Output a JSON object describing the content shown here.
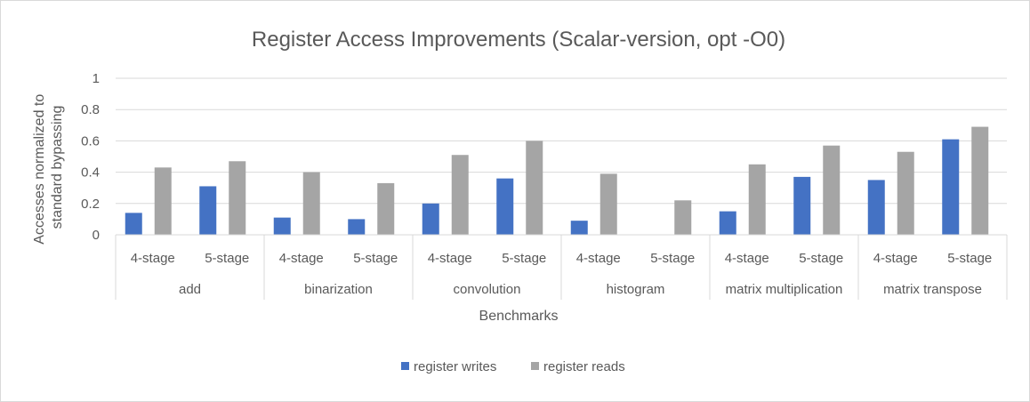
{
  "chart_data": {
    "type": "bar",
    "title": "Register Access Improvements (Scalar-version, opt -O0)",
    "xlabel": "Benchmarks",
    "ylabel_lines": [
      "Accesses normalized to",
      "standard bypassing"
    ],
    "ylim": [
      0,
      1
    ],
    "yticks": [
      "0",
      "0.2",
      "0.4",
      "0.6",
      "0.8",
      "1"
    ],
    "grid": true,
    "legend_position": "bottom",
    "groups": [
      {
        "name": "add",
        "categories": [
          "4-stage",
          "5-stage"
        ]
      },
      {
        "name": "binarization",
        "categories": [
          "4-stage",
          "5-stage"
        ]
      },
      {
        "name": "convolution",
        "categories": [
          "4-stage",
          "5-stage"
        ]
      },
      {
        "name": "histogram",
        "categories": [
          "4-stage",
          "5-stage"
        ]
      },
      {
        "name": "matrix multiplication",
        "categories": [
          "4-stage",
          "5-stage"
        ]
      },
      {
        "name": "matrix transpose",
        "categories": [
          "4-stage",
          "5-stage"
        ]
      }
    ],
    "series": [
      {
        "name": "register writes",
        "color": "#4472c4",
        "values": [
          0.14,
          0.31,
          0.11,
          0.1,
          0.2,
          0.36,
          0.09,
          0.0,
          0.15,
          0.37,
          0.35,
          0.61
        ]
      },
      {
        "name": "register reads",
        "color": "#a5a5a5",
        "values": [
          0.43,
          0.47,
          0.4,
          0.33,
          0.51,
          0.6,
          0.39,
          0.22,
          0.45,
          0.57,
          0.53,
          0.69
        ]
      }
    ]
  }
}
